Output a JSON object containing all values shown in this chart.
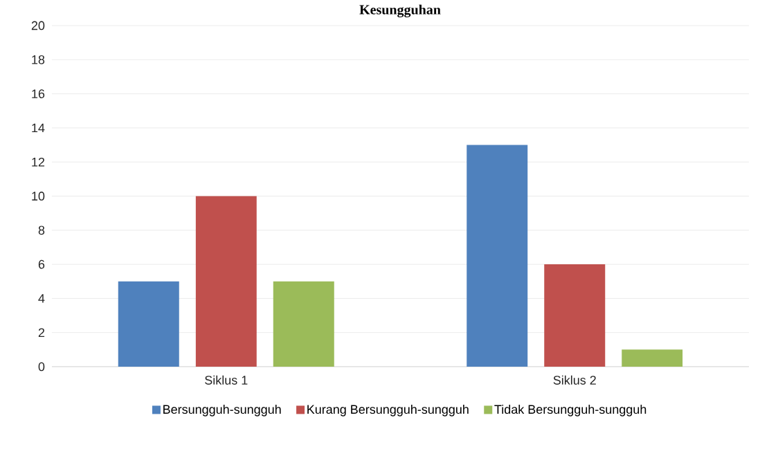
{
  "chart_data": {
    "type": "bar",
    "title": "Kesungguhan",
    "categories": [
      "Siklus 1",
      "Siklus 2"
    ],
    "series": [
      {
        "name": "Bersungguh-sungguh",
        "color": "#4f81bd",
        "values": [
          5,
          13
        ]
      },
      {
        "name": "Kurang Bersungguh-sungguh",
        "color": "#c0504d",
        "values": [
          10,
          6
        ]
      },
      {
        "name": "Tidak Bersungguh-sungguh",
        "color": "#9bbb59",
        "values": [
          5,
          1
        ]
      }
    ],
    "ylim": [
      0,
      20
    ],
    "yticks": [
      0,
      2,
      4,
      6,
      8,
      10,
      12,
      14,
      16,
      18,
      20
    ],
    "grid": "y",
    "legend": "bottom"
  }
}
